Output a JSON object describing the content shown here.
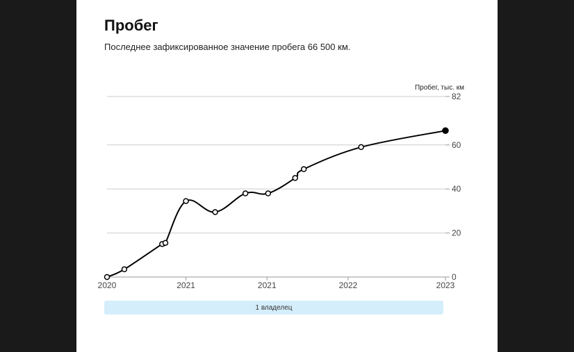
{
  "header": {
    "title": "Пробег",
    "subtitle": "Последнее зафиксированное значение пробега 66 500 км."
  },
  "owner_bar": {
    "label": "1 владелец",
    "color": "#d5eefb"
  },
  "chart_data": {
    "type": "line",
    "title": "Пробег",
    "ylabel": "Пробег, тыс. км",
    "xlabel": "",
    "ylim": [
      0,
      82
    ],
    "yticks": [
      0,
      20,
      40,
      60,
      82
    ],
    "xticks": [
      {
        "label": "2020",
        "x": 2019.92
      },
      {
        "label": "2021",
        "x": 2020.65
      },
      {
        "label": "2021",
        "x": 2021.4
      },
      {
        "label": "2022",
        "x": 2022.15
      },
      {
        "label": "2023",
        "x": 2023.05
      }
    ],
    "xlim": [
      2019.92,
      2023.05
    ],
    "grid": true,
    "line_color": "#000000",
    "grid_color": "#cccccc",
    "series": [
      {
        "points": [
          {
            "x": 2019.92,
            "y": 0
          },
          {
            "x": 2020.08,
            "y": 3.5
          },
          {
            "x": 2020.43,
            "y": 15
          },
          {
            "x": 2020.46,
            "y": 15.5
          },
          {
            "x": 2020.65,
            "y": 34.5
          },
          {
            "x": 2020.92,
            "y": 29.5
          },
          {
            "x": 2021.2,
            "y": 38
          },
          {
            "x": 2021.41,
            "y": 38
          },
          {
            "x": 2021.66,
            "y": 45
          },
          {
            "x": 2021.74,
            "y": 49
          },
          {
            "x": 2022.27,
            "y": 59
          },
          {
            "x": 2023.05,
            "y": 66.5
          }
        ],
        "last_point_filled": true
      }
    ]
  }
}
